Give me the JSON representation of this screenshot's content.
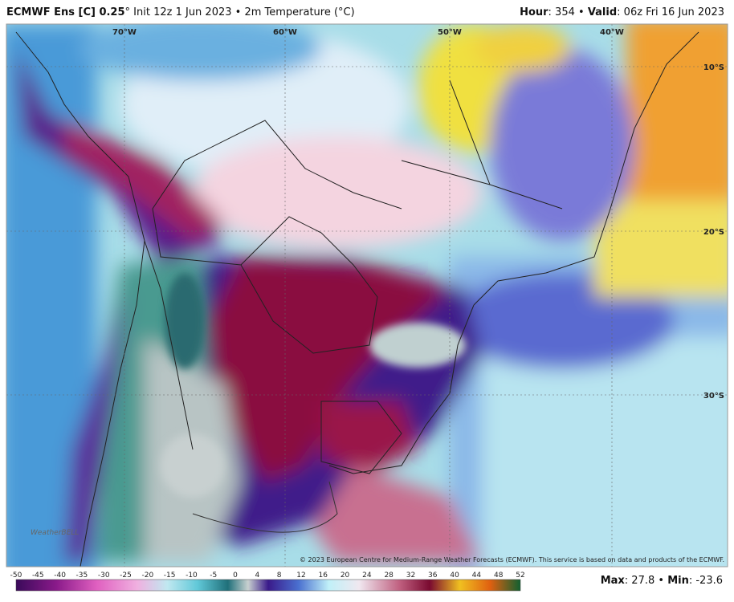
{
  "header": {
    "model": "ECMWF Ens [C] 0.25",
    "info": "° Init 12z 1 Jun 2023 • 2m Temperature (°C)",
    "hour_label": "Hour",
    "hour_value": ": 354 • ",
    "valid_label": "Valid",
    "valid_value": ": 06z Fri 16 Jun 2023"
  },
  "map": {
    "longitudes": [
      "70°W",
      "60°W",
      "50°W",
      "40°W"
    ],
    "latitudes": [
      "10°S",
      "20°S",
      "30°S"
    ],
    "copyright": "© 2023 European Centre for Medium-Range Weather Forecasts (ECMWF). This service is based on data and products of the ECMWF.",
    "logo": "WeatherBELL"
  },
  "colorbar": {
    "ticks": [
      -50,
      -45,
      -40,
      -35,
      -30,
      -25,
      -20,
      -15,
      -10,
      -5,
      0,
      4,
      8,
      12,
      16,
      20,
      24,
      28,
      32,
      36,
      40,
      44,
      48,
      52
    ]
  },
  "footer": {
    "max_label": "Max",
    "max_value": ": 27.8 • ",
    "min_label": "Min",
    "min_value": ": -23.6"
  }
}
